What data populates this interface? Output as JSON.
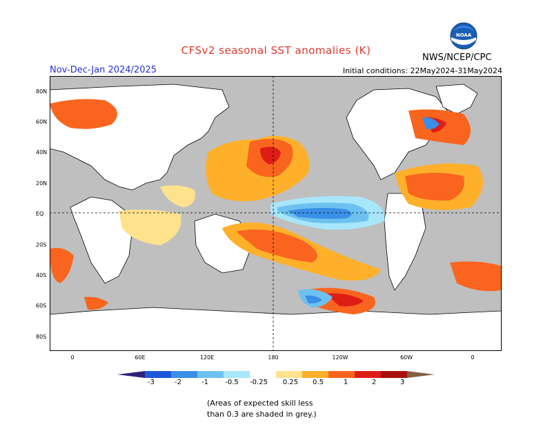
{
  "title": "CFSv2 seasonal SST anomalies (K)",
  "period": "Nov-Dec-Jan 2024/2025",
  "initial_conditions": "Initial conditions: 22May2024-31May2024",
  "agency": "NWS/NCEP/CPC",
  "logo_text": "NOAA",
  "lat_labels": [
    "80N",
    "60N",
    "40N",
    "20N",
    "EQ",
    "20S",
    "40S",
    "60S",
    "80S"
  ],
  "lon_labels": [
    "0",
    "60E",
    "120E",
    "180",
    "120W",
    "60W",
    "0"
  ],
  "colorbar_labels": [
    "-3",
    "-2",
    "-1",
    "-0.5",
    "-0.25",
    "0.25",
    "0.5",
    "1",
    "2",
    "3"
  ],
  "colorbar_colors": [
    "#30217a",
    "#1d58d8",
    "#3a8fe6",
    "#6dc1ef",
    "#a8e6fb",
    "#ffffff",
    "#ffe28c",
    "#ffb02a",
    "#f9651e",
    "#dd1d16",
    "#a80f0d",
    "#83603f"
  ],
  "note_line1": "(Areas of expected skill less",
  "note_line2": "than 0.3 are shaded in grey.)",
  "colors": {
    "title": "#e0362b",
    "period": "#2330d8",
    "grey_low_skill": "#c0c0c0"
  }
}
